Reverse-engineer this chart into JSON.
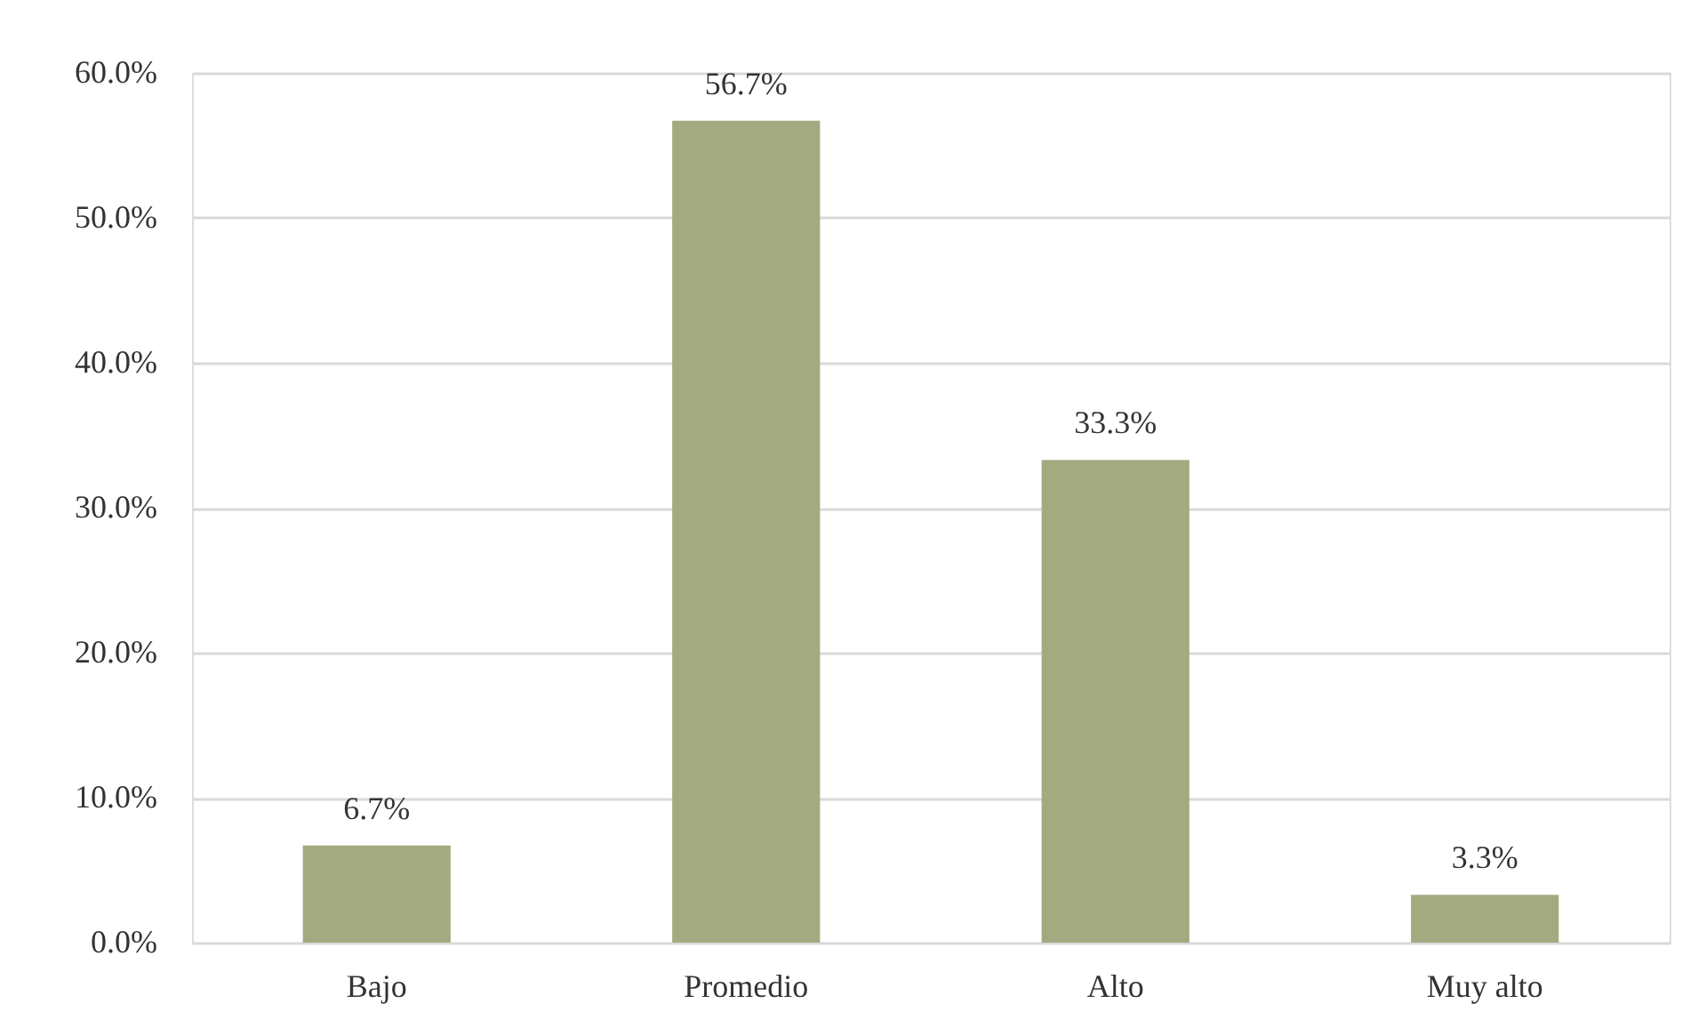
{
  "chart_data": {
    "type": "bar",
    "categories": [
      "Bajo",
      "Promedio",
      "Alto",
      "Muy alto"
    ],
    "values": [
      6.7,
      56.7,
      33.3,
      3.3
    ],
    "color": "#a4aa80",
    "value_labels": [
      "6.7%",
      "56.7%",
      "33.3%",
      "3.3%"
    ],
    "ylim": [
      0,
      60
    ],
    "yticks": [
      {
        "value": 0,
        "label": "0.0%"
      },
      {
        "value": 10,
        "label": "10.0%"
      },
      {
        "value": 20,
        "label": "20.0%"
      },
      {
        "value": 30,
        "label": "30.0%"
      },
      {
        "value": 40,
        "label": "40.0%"
      },
      {
        "value": 50,
        "label": "50.0%"
      },
      {
        "value": 60,
        "label": "60.0%"
      }
    ],
    "grid": "y"
  }
}
